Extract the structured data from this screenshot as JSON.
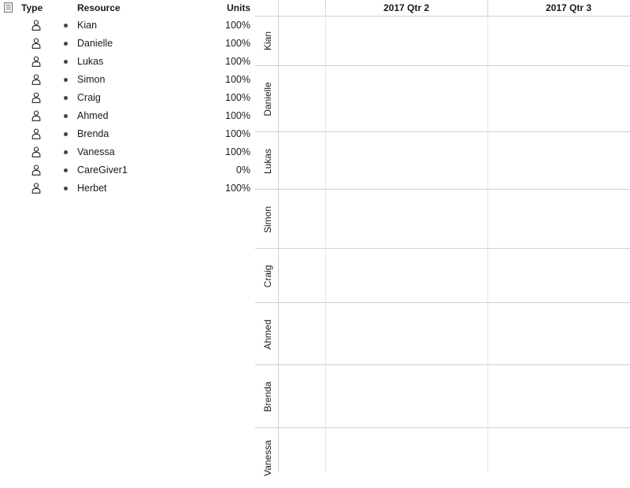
{
  "table": {
    "headers": {
      "type": "Type",
      "resource": "Resource",
      "units": "Units"
    },
    "rows": [
      {
        "icon": "person-icon",
        "name": "Kian",
        "units": "100%"
      },
      {
        "icon": "person-icon",
        "name": "Danielle",
        "units": "100%"
      },
      {
        "icon": "person-icon",
        "name": "Lukas",
        "units": "100%"
      },
      {
        "icon": "person-icon",
        "name": "Simon",
        "units": "100%"
      },
      {
        "icon": "person-icon",
        "name": "Craig",
        "units": "100%"
      },
      {
        "icon": "person-icon",
        "name": "Ahmed",
        "units": "100%"
      },
      {
        "icon": "person-icon",
        "name": "Brenda",
        "units": "100%"
      },
      {
        "icon": "person-icon",
        "name": "Vanessa",
        "units": "100%"
      },
      {
        "icon": "person-icon",
        "name": "CareGiver1",
        "units": "0%"
      },
      {
        "icon": "person-icon",
        "name": "Herbet",
        "units": "100%"
      }
    ]
  },
  "timeline": {
    "quarters": [
      "2017 Qtr 2",
      "2017 Qtr 3"
    ],
    "lanes": [
      "Kian",
      "Danielle",
      "Lukas",
      "Simon",
      "Craig",
      "Ahmed",
      "Brenda",
      "Vanessa"
    ]
  }
}
